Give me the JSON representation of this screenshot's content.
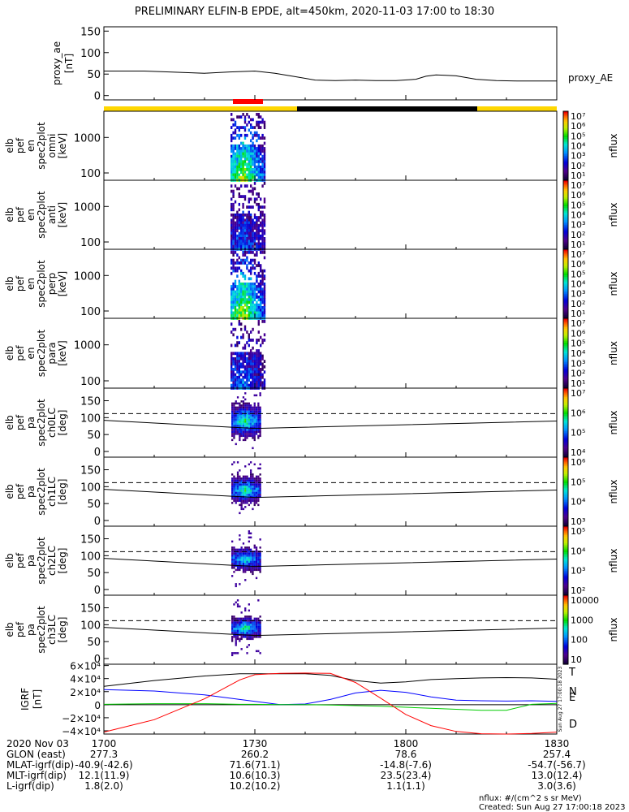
{
  "title": "PRELIMINARY ELFIN-B EPDE, alt=450km, 2020-11-03 17:00 to 18:30",
  "chart_data": [
    {
      "panel": "proxy_ae",
      "type": "line",
      "ylabel": [
        "proxy_ae",
        "[nT]"
      ],
      "yticks": [
        "150",
        "100",
        "50",
        "0"
      ],
      "ylim": [
        -10,
        160
      ],
      "legend": "proxy_AE",
      "x_minutes": [
        0,
        8,
        13,
        20,
        25,
        30,
        34,
        38,
        42,
        46,
        50,
        54,
        58,
        62,
        64,
        66,
        68,
        70,
        74,
        78,
        82,
        86,
        90
      ],
      "values": [
        57,
        57,
        55,
        52,
        55,
        57,
        52,
        44,
        36,
        35,
        36,
        35,
        35,
        38,
        45,
        48,
        47,
        46,
        38,
        35,
        34,
        34,
        34
      ]
    },
    {
      "panel": "elb_pef_en_spec2plot_omni",
      "type": "heatmap",
      "ylabel": [
        "elb",
        "pef",
        "en",
        "spec2plot",
        "omni",
        "[keV]"
      ],
      "yticks": [
        "1000",
        "100"
      ],
      "zlabel": "nflux",
      "zticks": [
        "10⁷",
        "10⁶",
        "10⁵",
        "10⁴",
        "10³",
        "10²",
        "10¹"
      ]
    },
    {
      "panel": "elb_pef_en_spec2plot_anti",
      "type": "heatmap",
      "ylabel": [
        "elb",
        "pef",
        "en",
        "spec2plot",
        "anti",
        "[keV]"
      ],
      "yticks": [
        "1000",
        "100"
      ],
      "zlabel": "nflux",
      "zticks": [
        "10⁷",
        "10⁶",
        "10⁵",
        "10⁴",
        "10³",
        "10²",
        "10¹"
      ]
    },
    {
      "panel": "elb_pef_en_spec2plot_perp",
      "type": "heatmap",
      "ylabel": [
        "elb",
        "pef",
        "en",
        "spec2plot",
        "perp",
        "[keV]"
      ],
      "yticks": [
        "1000",
        "100"
      ],
      "zlabel": "nflux",
      "zticks": [
        "10⁷",
        "10⁶",
        "10⁵",
        "10⁴",
        "10³",
        "10²",
        "10¹"
      ]
    },
    {
      "panel": "elb_pef_en_spec2plot_para",
      "type": "heatmap",
      "ylabel": [
        "elb",
        "pef",
        "en",
        "spec2plot",
        "para",
        "[keV]"
      ],
      "yticks": [
        "1000",
        "100"
      ],
      "zlabel": "nflux",
      "zticks": [
        "10⁷",
        "10⁶",
        "10⁵",
        "10⁴",
        "10³",
        "10²",
        "10¹"
      ]
    },
    {
      "panel": "elb_pef_pa_spec2plot_ch0LC",
      "type": "heatmap",
      "ylabel": [
        "elb",
        "pef",
        "pa",
        "spec2plot",
        "ch0LC",
        "[deg]"
      ],
      "yticks": [
        "150",
        "100",
        "50",
        "0"
      ],
      "zlabel": "nflux",
      "zticks": [
        "10⁷",
        "10⁶",
        "10⁵",
        "10⁴"
      ]
    },
    {
      "panel": "elb_pef_pa_spec2plot_ch1LC",
      "type": "heatmap",
      "ylabel": [
        "elb",
        "pef",
        "pa",
        "spec2plot",
        "ch1LC",
        "[deg]"
      ],
      "yticks": [
        "150",
        "100",
        "50",
        "0"
      ],
      "zlabel": "nflux",
      "zticks": [
        "10⁶",
        "10⁵",
        "10⁴",
        "10³"
      ]
    },
    {
      "panel": "elb_pef_pa_spec2plot_ch2LC",
      "type": "heatmap",
      "ylabel": [
        "elb",
        "pef",
        "pa",
        "spec2plot",
        "ch2LC",
        "[deg]"
      ],
      "yticks": [
        "150",
        "100",
        "50",
        "0"
      ],
      "zlabel": "nflux",
      "zticks": [
        "10⁵",
        "10⁴",
        "10³",
        "10²"
      ]
    },
    {
      "panel": "elb_pef_pa_spec2plot_ch3LC",
      "type": "heatmap",
      "ylabel": [
        "elb",
        "pef",
        "pa",
        "spec2plot",
        "ch3LC",
        "[deg]"
      ],
      "yticks": [
        "150",
        "100",
        "50",
        "0"
      ],
      "zlabel": "nflux",
      "zticks": [
        "10000",
        "1000",
        "100",
        "10"
      ]
    },
    {
      "panel": "igrf",
      "type": "line",
      "ylabel": [
        "IGRF",
        "[nT]"
      ],
      "yticks": [
        "6×10⁴",
        "4×10⁴",
        "2×10⁴",
        "0",
        "−2×10⁴",
        "−4×10⁴"
      ],
      "ylim": [
        -45000,
        62000
      ],
      "x_minutes": [
        0,
        10,
        20,
        27,
        30,
        35,
        40,
        45,
        50,
        55,
        60,
        65,
        70,
        75,
        80,
        85,
        90
      ],
      "series": [
        {
          "name": "T",
          "color": "#000000",
          "values": [
            28000,
            37000,
            44000,
            47500,
            47500,
            47500,
            47500,
            45000,
            37000,
            33000,
            35000,
            38500,
            40000,
            41000,
            41500,
            41000,
            39000
          ]
        },
        {
          "name": "N",
          "color": "#0000ff",
          "values": [
            23000,
            21000,
            15000,
            8000,
            5000,
            0,
            1000,
            8000,
            18000,
            22000,
            19000,
            12000,
            7000,
            6000,
            5500,
            6000,
            5000
          ]
        },
        {
          "name": "E",
          "color": "#00cc00",
          "values": [
            500,
            1500,
            1500,
            500,
            500,
            0,
            0,
            -500,
            -1500,
            -2500,
            -4000,
            -5500,
            -7000,
            -8500,
            -8500,
            500,
            2000
          ]
        },
        {
          "name": "D",
          "color": "#ff0000",
          "values": [
            -42000,
            -23000,
            9000,
            38000,
            46000,
            48000,
            48500,
            48000,
            34000,
            10000,
            -15000,
            -32000,
            -41000,
            -44500,
            -45000,
            -44000,
            -42000
          ]
        }
      ]
    }
  ],
  "x_ticks": [
    "1700",
    "1730",
    "1800",
    "1830"
  ],
  "ephemeris": {
    "labels": [
      "2020 Nov 03",
      "GLON (east)",
      "MLAT-igrf(dip)",
      "MLT-igrf(dip)",
      "L-igrf(dip)"
    ],
    "columns": [
      [
        "1700",
        "277.3",
        "-40.9(-42.6)",
        "12.1(11.9)",
        "1.8(2.0)"
      ],
      [
        "1730",
        "260.2",
        "71.6(71.1)",
        "10.6(10.3)",
        "10.2(10.2)"
      ],
      [
        "1800",
        "78.6",
        "-14.8(-7.6)",
        "23.5(23.4)",
        "1.1(1.1)"
      ],
      [
        "1830",
        "257.4",
        "-54.7(-56.7)",
        "13.0(12.4)",
        "3.0(3.6)"
      ]
    ]
  },
  "footer": {
    "units": "nflux: #/(cm^2 s sr MeV)",
    "created": "Created: Sun Aug 27 17:00:18 2023",
    "side_stamp": "Sun Aug 27 17:00:18 2023"
  },
  "colors": {
    "sunlit_bar": "#ffd700",
    "shadow_bar": "#000000",
    "science_zone": "#ff0000"
  }
}
